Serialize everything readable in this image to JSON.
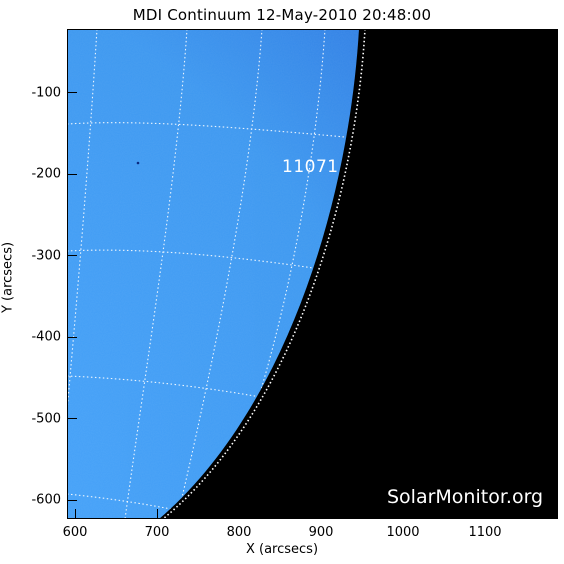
{
  "title": "MDI Continuum 12-May-2010 20:48:00",
  "x_axis": {
    "label": "X (arcsecs)",
    "ticks": [
      "600",
      "700",
      "800",
      "900",
      "1000",
      "1100"
    ],
    "range": [
      590,
      1190
    ]
  },
  "y_axis": {
    "label": "Y (arcsecs)",
    "ticks": [
      "-100",
      "-200",
      "-300",
      "-400",
      "-500",
      "-600"
    ],
    "range": [
      -620,
      -20
    ]
  },
  "active_region": {
    "number": "11071"
  },
  "watermark": "SolarMonitor.org",
  "colors": {
    "disk": "#3f9bf5",
    "limb_dark": "#1018c8",
    "space": "#000000",
    "grid": "#ffffff"
  }
}
